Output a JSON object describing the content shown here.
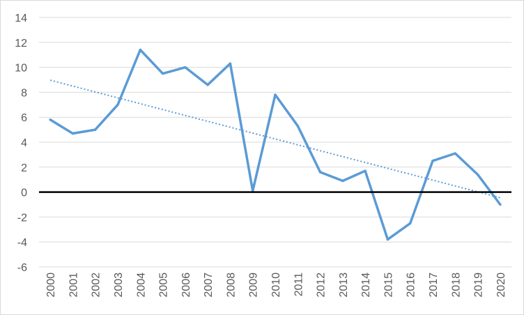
{
  "chart_data": {
    "type": "line",
    "title": "",
    "xlabel": "",
    "ylabel": "",
    "categories": [
      "2000",
      "2001",
      "2002",
      "2003",
      "2004",
      "2005",
      "2006",
      "2007",
      "2008",
      "2009",
      "2010",
      "2011",
      "2012",
      "2013",
      "2014",
      "2015",
      "2016",
      "2017",
      "2018",
      "2019",
      "2020"
    ],
    "series": [
      {
        "values": [
          5.8,
          4.7,
          5.0,
          7.0,
          11.4,
          9.5,
          10.0,
          8.6,
          10.3,
          0.1,
          7.8,
          5.3,
          1.6,
          0.9,
          1.7,
          -3.8,
          -2.5,
          2.5,
          3.1,
          1.4,
          -1.0
        ],
        "color": "#5b9bd5"
      }
    ],
    "trendline": {
      "type": "linear",
      "style": "dotted",
      "color": "#5b9bd5"
    },
    "reference_line": {
      "y": 0,
      "color": "#000000"
    },
    "ylim": [
      -6,
      14
    ],
    "yticks": [
      -6,
      -4,
      -2,
      0,
      2,
      4,
      6,
      8,
      10,
      12,
      14
    ],
    "grid": true,
    "legend": "none"
  }
}
